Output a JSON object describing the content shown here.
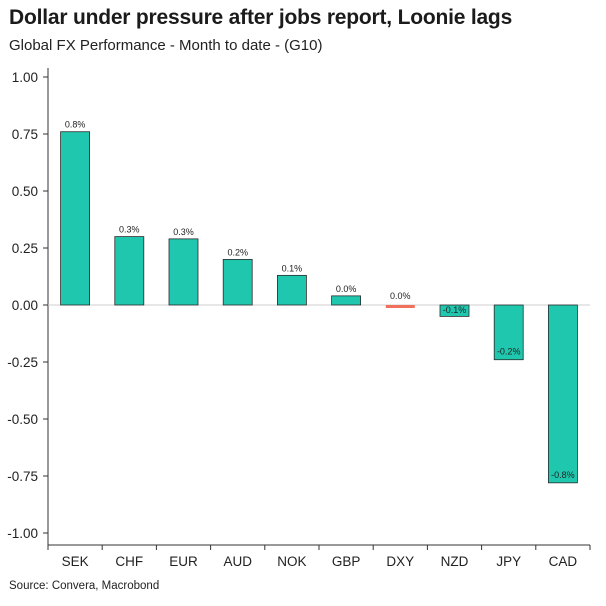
{
  "header": {
    "title": "Dollar under pressure after jobs report, Loonie lags",
    "subtitle": "Global FX Performance - Month to date - (G10)"
  },
  "footer": {
    "source": "Source: Convera, Macrobond"
  },
  "colors": {
    "positive_bar": "#1ec7ad",
    "negative_bar": "#1ec7ad",
    "highlight_bar": "#f0705a",
    "bar_stroke": "#2b2b2b",
    "axis": "#333333"
  },
  "chart_data": {
    "type": "bar",
    "title": "Dollar under pressure after jobs report, Loonie lags",
    "subtitle": "Global FX Performance - Month to date - (G10)",
    "xlabel": "",
    "ylabel": "",
    "ylim": [
      -1.0,
      1.0
    ],
    "yticks": [
      1.0,
      0.75,
      0.5,
      0.25,
      0.0,
      -0.25,
      -0.5,
      -0.75,
      -1.0
    ],
    "ytick_labels": [
      "1.00",
      "0.75",
      "0.50",
      "0.25",
      "0.00",
      "-0.25",
      "-0.50",
      "-0.75",
      "-1.00"
    ],
    "grid": false,
    "categories": [
      "SEK",
      "CHF",
      "EUR",
      "AUD",
      "NOK",
      "GBP",
      "DXY",
      "NZD",
      "JPY",
      "CAD"
    ],
    "values": [
      0.76,
      0.3,
      0.29,
      0.2,
      0.13,
      0.04,
      -0.01,
      -0.05,
      -0.24,
      -0.78
    ],
    "data_labels": [
      "0.8%",
      "0.3%",
      "0.3%",
      "0.2%",
      "0.1%",
      "0.0%",
      "0.0%",
      "-0.1%",
      "-0.2%",
      "-0.8%"
    ],
    "highlight": [
      "DXY"
    ]
  }
}
